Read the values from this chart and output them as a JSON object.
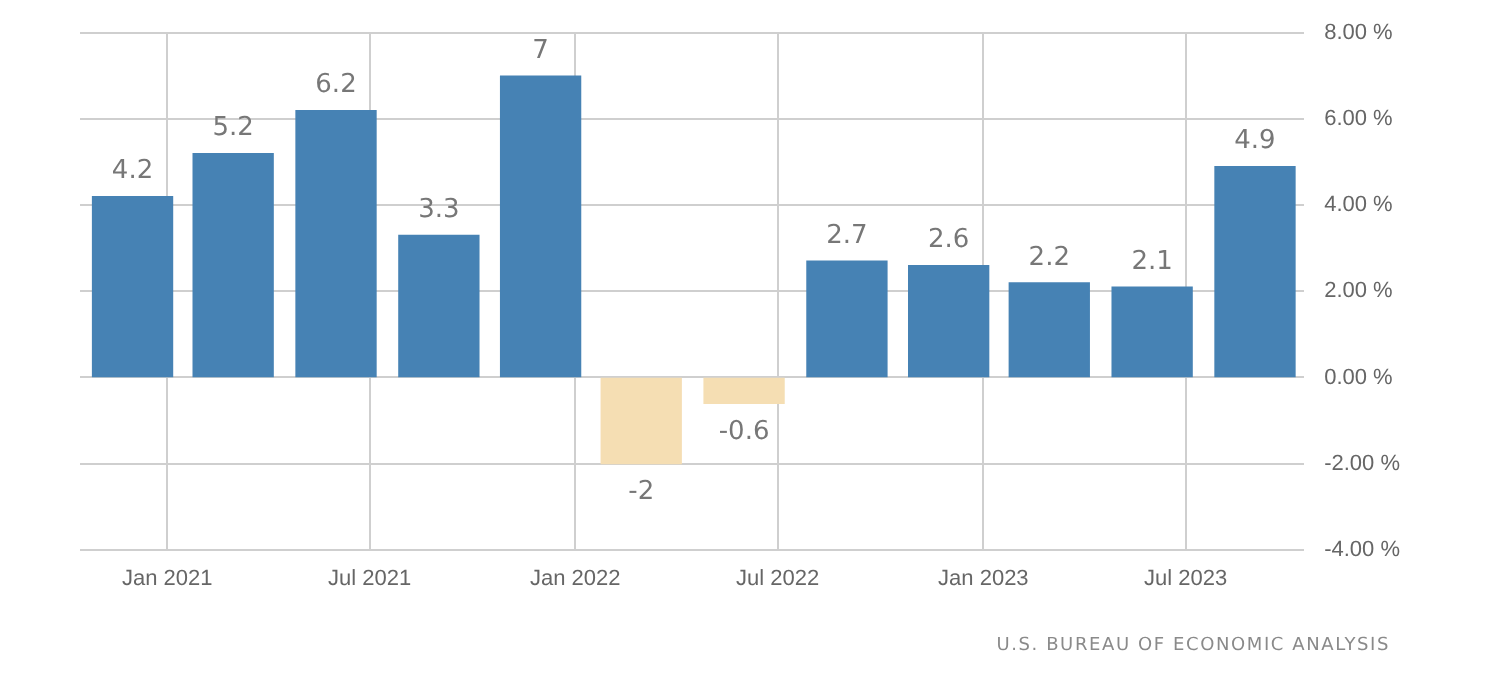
{
  "chart_data": {
    "type": "bar",
    "x": [
      "2020-12",
      "2021-03",
      "2021-06",
      "2021-09",
      "2021-12",
      "2022-03",
      "2022-06",
      "2022-09",
      "2022-12",
      "2023-03",
      "2023-06",
      "2023-09"
    ],
    "values": [
      4.2,
      5.2,
      6.2,
      3.3,
      7,
      -2,
      -0.6,
      2.7,
      2.6,
      2.2,
      2.1,
      4.9
    ],
    "colors": [
      "#4682b4",
      "#4682b4",
      "#4682b4",
      "#4682b4",
      "#4682b4",
      "#f5deb3",
      "#f5deb3",
      "#4682b4",
      "#4682b4",
      "#4682b4",
      "#4682b4",
      "#4682b4"
    ],
    "data_labels": true,
    "xlim": [
      "2020-10-15",
      "2023-10-15"
    ],
    "xticks": [
      {
        "value": "2021-01-01",
        "label": "Jan 2021"
      },
      {
        "value": "2021-07-01",
        "label": "Jul 2021"
      },
      {
        "value": "2022-01-01",
        "label": "Jan 2022"
      },
      {
        "value": "2022-07-01",
        "label": "Jul 2022"
      },
      {
        "value": "2023-01-01",
        "label": "Jan 2023"
      },
      {
        "value": "2023-07-01",
        "label": "Jul 2023"
      }
    ],
    "ylim": [
      -4,
      8
    ],
    "yticks": [
      {
        "value": -4,
        "label": "-4.00 %"
      },
      {
        "value": -2,
        "label": "-2.00 %"
      },
      {
        "value": 0,
        "label": "0.00 %"
      },
      {
        "value": 2,
        "label": "2.00 %"
      },
      {
        "value": 4,
        "label": "4.00 %"
      },
      {
        "value": 6,
        "label": "6.00 %"
      },
      {
        "value": 8,
        "label": "8.00 %"
      }
    ],
    "grid": true,
    "annotations": [
      "U.S. BUREAU OF ECONOMIC ANALYSIS"
    ]
  }
}
